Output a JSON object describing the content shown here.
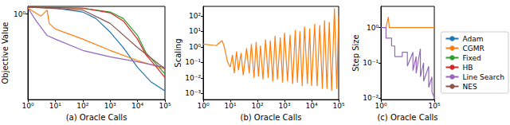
{
  "chart_data": [
    {
      "type": "line",
      "x_label": "(a) Oracle Calls",
      "y_label": "Objective Value",
      "log": true,
      "grid": false,
      "legend": "right",
      "xlim": [
        1,
        100000
      ],
      "xticks": [
        {
          "value": 1,
          "label": "10⁰"
        },
        {
          "value": 10,
          "label": "10¹"
        },
        {
          "value": 100,
          "label": "10²"
        },
        {
          "value": 1000,
          "label": "10³"
        },
        {
          "value": 10000,
          "label": "10⁴"
        },
        {
          "value": 100000,
          "label": "10⁵"
        }
      ],
      "ylim": [
        0.13,
        1.2
      ],
      "yticks": [
        {
          "value": 1,
          "label": "10⁰"
        }
      ],
      "series": [
        {
          "name": "Adam",
          "color": "#1f77b4",
          "x": [
            1,
            10,
            100,
            300,
            1000,
            3000,
            10000,
            30000,
            100000
          ],
          "values": [
            1.18,
            1.15,
            1.05,
            0.9,
            0.65,
            0.45,
            0.28,
            0.2,
            0.16
          ]
        },
        {
          "name": "CGMR",
          "color": "#ff7f0e",
          "x": [
            1,
            3,
            5,
            6,
            10,
            100,
            1000,
            10000,
            100000
          ],
          "values": [
            1.15,
            0.95,
            1.1,
            0.8,
            0.7,
            0.55,
            0.42,
            0.33,
            0.27
          ]
        },
        {
          "name": "Fixed",
          "color": "#2ca02c",
          "x": [
            1,
            100,
            1000,
            3000,
            10000,
            20000,
            50000,
            100000
          ],
          "values": [
            1.18,
            1.15,
            1.05,
            0.9,
            0.6,
            0.4,
            0.3,
            0.24
          ]
        },
        {
          "name": "HB",
          "color": "#d62728",
          "x": [
            1,
            100,
            1000,
            3000,
            10000,
            20000,
            50000,
            100000
          ],
          "values": [
            1.18,
            1.15,
            1.03,
            0.85,
            0.55,
            0.38,
            0.28,
            0.22
          ]
        },
        {
          "name": "Line Search",
          "color": "#9467bd",
          "x": [
            1,
            2,
            5,
            10,
            100,
            1000,
            10000,
            100000
          ],
          "values": [
            1.15,
            0.85,
            0.6,
            0.55,
            0.42,
            0.36,
            0.32,
            0.28
          ]
        },
        {
          "name": "NES",
          "color": "#8c564b",
          "x": [
            1,
            100,
            1000,
            10000,
            100000
          ],
          "values": [
            1.18,
            1.1,
            0.8,
            0.45,
            0.27
          ]
        }
      ]
    },
    {
      "type": "line",
      "x_label": "(b) Oracle Calls",
      "y_label": "Scaling",
      "log": true,
      "grid": false,
      "xlim": [
        1,
        100000
      ],
      "xticks": [
        {
          "value": 1,
          "label": "10⁰"
        },
        {
          "value": 10,
          "label": "10¹"
        },
        {
          "value": 100,
          "label": "10²"
        },
        {
          "value": 1000,
          "label": "10³"
        },
        {
          "value": 10000,
          "label": "10⁴"
        },
        {
          "value": 100000,
          "label": "10⁵"
        }
      ],
      "ylim": [
        0.0004,
        400
      ],
      "yticks": [
        {
          "value": 0.001,
          "label": "10⁻³"
        },
        {
          "value": 0.01,
          "label": "10⁻²"
        },
        {
          "value": 0.1,
          "label": "10⁻¹"
        },
        {
          "value": 1,
          "label": "10⁰"
        },
        {
          "value": 10,
          "label": "10¹"
        },
        {
          "value": 100,
          "label": "10²"
        }
      ],
      "series": [
        {
          "name": "CGMR",
          "color": "#ff7f0e",
          "x": [
            1,
            3,
            5,
            6,
            8,
            10,
            12,
            14,
            17,
            20,
            25,
            30,
            40,
            50,
            60,
            75,
            90,
            110,
            130,
            160,
            200,
            250,
            300,
            370,
            450,
            550,
            700,
            850,
            1000,
            1300,
            1600,
            2000,
            2500,
            3000,
            3700,
            4500,
            5500,
            7000,
            8500,
            10000,
            13000,
            16000,
            20000,
            25000,
            30000,
            37000,
            45000,
            55000,
            70000,
            85000,
            100000
          ],
          "values": [
            1.5,
            1.2,
            2.5,
            1.0,
            0.1,
            0.05,
            0.3,
            0.02,
            0.5,
            0.03,
            0.4,
            0.015,
            0.8,
            0.02,
            1.5,
            0.01,
            2,
            0.012,
            1.2,
            0.008,
            3,
            0.01,
            2.5,
            0.006,
            5,
            0.008,
            4,
            0.005,
            8,
            0.006,
            6,
            0.004,
            12,
            0.005,
            10,
            0.003,
            20,
            0.004,
            15,
            0.003,
            30,
            0.003,
            25,
            0.002,
            50,
            0.002,
            40,
            0.0015,
            300,
            0.002,
            100
          ]
        }
      ]
    },
    {
      "type": "line",
      "x_label": "(c) Oracle Calls",
      "y_label": "Step Size",
      "log": true,
      "grid": false,
      "xlim": [
        1,
        100000
      ],
      "xticks": [
        {
          "value": 1,
          "label": "10⁰"
        },
        {
          "value": 100000,
          "label": "10⁵"
        }
      ],
      "ylim": [
        0.009,
        4
      ],
      "yticks": [
        {
          "value": 0.01,
          "label": "10⁻²"
        },
        {
          "value": 0.1,
          "label": "10⁻¹"
        },
        {
          "value": 1,
          "label": "10⁰"
        }
      ],
      "series": [
        {
          "name": "CGMR",
          "color": "#ff7f0e",
          "x": [
            1,
            3,
            5,
            6,
            100000
          ],
          "values": [
            1,
            1,
            2,
            1,
            1
          ]
        },
        {
          "name": "Line Search",
          "color": "#9467bd",
          "x": [
            1,
            3,
            3,
            10,
            10,
            20,
            20,
            100,
            100,
            300,
            300,
            1000,
            1000,
            2000,
            2000,
            5000,
            5000,
            10000,
            10000,
            30000,
            30000,
            60000,
            60000,
            100000
          ],
          "values": [
            1,
            1,
            0.5,
            0.5,
            0.3,
            0.3,
            0.15,
            0.15,
            0.2,
            0.2,
            0.08,
            0.2,
            0.06,
            0.15,
            0.05,
            0.25,
            0.04,
            0.1,
            0.03,
            0.08,
            0.02,
            0.04,
            0.015,
            0.01
          ]
        }
      ]
    }
  ]
}
